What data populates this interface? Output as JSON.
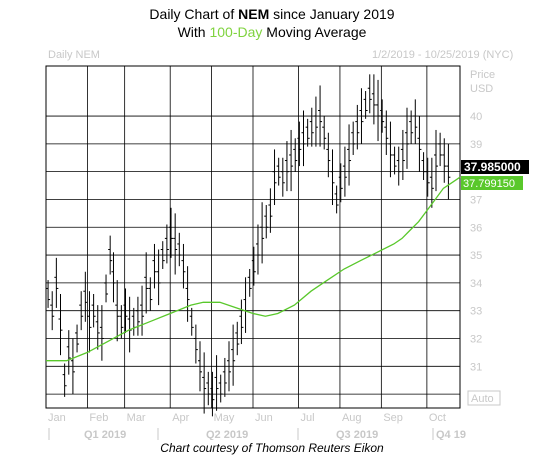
{
  "header": {
    "line1_prefix": "Daily Chart of ",
    "ticker": "NEM",
    "line1_suffix": " since January 2019",
    "line2_prefix": "With ",
    "ma_highlight": "100-Day",
    "line2_suffix": " Moving Average"
  },
  "chart_header": {
    "left_label": "Daily NEM",
    "date_range": "1/2/2019 - 10/25/2019 (NYC)"
  },
  "axis": {
    "price_label": "Price",
    "currency_label": "USD",
    "auto_label": "Auto"
  },
  "badges": {
    "last_price": "37.985000",
    "ma_value": "37.799150"
  },
  "credit": "Chart courtesy of Thomson Reuters Eikon",
  "colors": {
    "price_bars": "#000000",
    "moving_average": "#59c82b",
    "last_price_badge": "#000000",
    "ma_badge": "#59c82b",
    "grid": "#000000",
    "axis_text": "#c8c8c8"
  },
  "chart_data": {
    "type": "ohlc",
    "title": "Daily Chart of NEM since January 2019",
    "subtitle": "With 100-Day Moving Average",
    "ylabel": "Price USD",
    "ylim": [
      29.5,
      41.8
    ],
    "yticks": [
      30,
      31,
      32,
      33,
      34,
      35,
      36,
      37,
      38,
      39,
      40
    ],
    "ytick_labels": [
      "30",
      "31",
      "32",
      "33",
      "34",
      "35",
      "36",
      "37",
      "",
      "39",
      "40"
    ],
    "month_labels": [
      "Jan",
      "Feb",
      "Mar",
      "Apr",
      "May",
      "Jun",
      "Jul",
      "Aug",
      "Sep",
      "Oct"
    ],
    "quarter_labels": [
      "Q1 2019",
      "Q2 2019",
      "Q3 2019",
      "Q4 19"
    ],
    "grid": true,
    "price_series": [
      {
        "x": 0.005,
        "y": 33.6
      },
      {
        "x": 0.015,
        "y": 33.0
      },
      {
        "x": 0.025,
        "y": 34.0
      },
      {
        "x": 0.035,
        "y": 32.5
      },
      {
        "x": 0.045,
        "y": 30.5
      },
      {
        "x": 0.055,
        "y": 31.5
      },
      {
        "x": 0.065,
        "y": 31.0
      },
      {
        "x": 0.075,
        "y": 32.0
      },
      {
        "x": 0.085,
        "y": 33.0
      },
      {
        "x": 0.095,
        "y": 33.5
      },
      {
        "x": 0.105,
        "y": 32.6
      },
      {
        "x": 0.115,
        "y": 33.0
      },
      {
        "x": 0.125,
        "y": 32.4
      },
      {
        "x": 0.135,
        "y": 32.2
      },
      {
        "x": 0.145,
        "y": 33.8
      },
      {
        "x": 0.155,
        "y": 35.0
      },
      {
        "x": 0.163,
        "y": 34.2
      },
      {
        "x": 0.172,
        "y": 33.0
      },
      {
        "x": 0.182,
        "y": 32.6
      },
      {
        "x": 0.192,
        "y": 33.0
      },
      {
        "x": 0.202,
        "y": 32.5
      },
      {
        "x": 0.212,
        "y": 32.6
      },
      {
        "x": 0.222,
        "y": 32.8
      },
      {
        "x": 0.232,
        "y": 33.0
      },
      {
        "x": 0.242,
        "y": 34.0
      },
      {
        "x": 0.252,
        "y": 33.6
      },
      {
        "x": 0.262,
        "y": 34.6
      },
      {
        "x": 0.272,
        "y": 34.2
      },
      {
        "x": 0.282,
        "y": 35.0
      },
      {
        "x": 0.292,
        "y": 35.4
      },
      {
        "x": 0.302,
        "y": 35.8
      },
      {
        "x": 0.312,
        "y": 35.4
      },
      {
        "x": 0.322,
        "y": 35.2
      },
      {
        "x": 0.332,
        "y": 34.6
      },
      {
        "x": 0.342,
        "y": 33.6
      },
      {
        "x": 0.352,
        "y": 32.6
      },
      {
        "x": 0.362,
        "y": 31.8
      },
      {
        "x": 0.372,
        "y": 31.0
      },
      {
        "x": 0.382,
        "y": 30.4
      },
      {
        "x": 0.392,
        "y": 30.2
      },
      {
        "x": 0.402,
        "y": 30.0
      },
      {
        "x": 0.412,
        "y": 30.4
      },
      {
        "x": 0.422,
        "y": 30.2
      },
      {
        "x": 0.432,
        "y": 30.6
      },
      {
        "x": 0.442,
        "y": 31.0
      },
      {
        "x": 0.452,
        "y": 31.4
      },
      {
        "x": 0.462,
        "y": 32.0
      },
      {
        "x": 0.472,
        "y": 32.6
      },
      {
        "x": 0.482,
        "y": 33.2
      },
      {
        "x": 0.492,
        "y": 34.0
      },
      {
        "x": 0.502,
        "y": 34.6
      },
      {
        "x": 0.512,
        "y": 35.2
      },
      {
        "x": 0.522,
        "y": 35.8
      },
      {
        "x": 0.532,
        "y": 36.2
      },
      {
        "x": 0.542,
        "y": 36.6
      },
      {
        "x": 0.552,
        "y": 37.8
      },
      {
        "x": 0.562,
        "y": 38.0
      },
      {
        "x": 0.572,
        "y": 37.8
      },
      {
        "x": 0.582,
        "y": 38.2
      },
      {
        "x": 0.592,
        "y": 38.4
      },
      {
        "x": 0.602,
        "y": 38.6
      },
      {
        "x": 0.612,
        "y": 39.0
      },
      {
        "x": 0.622,
        "y": 39.2
      },
      {
        "x": 0.632,
        "y": 39.4
      },
      {
        "x": 0.642,
        "y": 39.6
      },
      {
        "x": 0.652,
        "y": 39.8
      },
      {
        "x": 0.662,
        "y": 40.0
      },
      {
        "x": 0.672,
        "y": 39.4
      },
      {
        "x": 0.682,
        "y": 38.6
      },
      {
        "x": 0.692,
        "y": 37.8
      },
      {
        "x": 0.702,
        "y": 37.0
      },
      {
        "x": 0.712,
        "y": 37.6
      },
      {
        "x": 0.722,
        "y": 38.0
      },
      {
        "x": 0.732,
        "y": 38.6
      },
      {
        "x": 0.742,
        "y": 39.2
      },
      {
        "x": 0.752,
        "y": 39.6
      },
      {
        "x": 0.762,
        "y": 40.0
      },
      {
        "x": 0.772,
        "y": 40.4
      },
      {
        "x": 0.782,
        "y": 40.8
      },
      {
        "x": 0.792,
        "y": 40.6
      },
      {
        "x": 0.802,
        "y": 40.2
      },
      {
        "x": 0.812,
        "y": 40.0
      },
      {
        "x": 0.822,
        "y": 39.4
      },
      {
        "x": 0.832,
        "y": 38.8
      },
      {
        "x": 0.842,
        "y": 38.4
      },
      {
        "x": 0.852,
        "y": 38.2
      },
      {
        "x": 0.862,
        "y": 38.6
      },
      {
        "x": 0.872,
        "y": 39.2
      },
      {
        "x": 0.882,
        "y": 39.6
      },
      {
        "x": 0.892,
        "y": 39.8
      },
      {
        "x": 0.902,
        "y": 39.0
      },
      {
        "x": 0.912,
        "y": 38.2
      },
      {
        "x": 0.922,
        "y": 37.8
      },
      {
        "x": 0.932,
        "y": 37.6
      },
      {
        "x": 0.942,
        "y": 38.4
      },
      {
        "x": 0.952,
        "y": 38.8
      },
      {
        "x": 0.962,
        "y": 38.4
      },
      {
        "x": 0.972,
        "y": 38.0
      }
    ],
    "moving_average_series": [
      {
        "x": 0.0,
        "y": 31.2
      },
      {
        "x": 0.05,
        "y": 31.2
      },
      {
        "x": 0.1,
        "y": 31.5
      },
      {
        "x": 0.15,
        "y": 31.9
      },
      {
        "x": 0.2,
        "y": 32.3
      },
      {
        "x": 0.25,
        "y": 32.6
      },
      {
        "x": 0.3,
        "y": 32.9
      },
      {
        "x": 0.35,
        "y": 33.2
      },
      {
        "x": 0.38,
        "y": 33.3
      },
      {
        "x": 0.42,
        "y": 33.3
      },
      {
        "x": 0.46,
        "y": 33.1
      },
      {
        "x": 0.5,
        "y": 32.9
      },
      {
        "x": 0.53,
        "y": 32.8
      },
      {
        "x": 0.56,
        "y": 32.9
      },
      {
        "x": 0.6,
        "y": 33.2
      },
      {
        "x": 0.64,
        "y": 33.7
      },
      {
        "x": 0.68,
        "y": 34.1
      },
      {
        "x": 0.72,
        "y": 34.5
      },
      {
        "x": 0.76,
        "y": 34.8
      },
      {
        "x": 0.8,
        "y": 35.1
      },
      {
        "x": 0.84,
        "y": 35.4
      },
      {
        "x": 0.86,
        "y": 35.6
      },
      {
        "x": 0.88,
        "y": 35.9
      },
      {
        "x": 0.9,
        "y": 36.2
      },
      {
        "x": 0.92,
        "y": 36.6
      },
      {
        "x": 0.94,
        "y": 37.0
      },
      {
        "x": 0.96,
        "y": 37.4
      },
      {
        "x": 0.98,
        "y": 37.6
      },
      {
        "x": 1.0,
        "y": 37.8
      }
    ]
  }
}
